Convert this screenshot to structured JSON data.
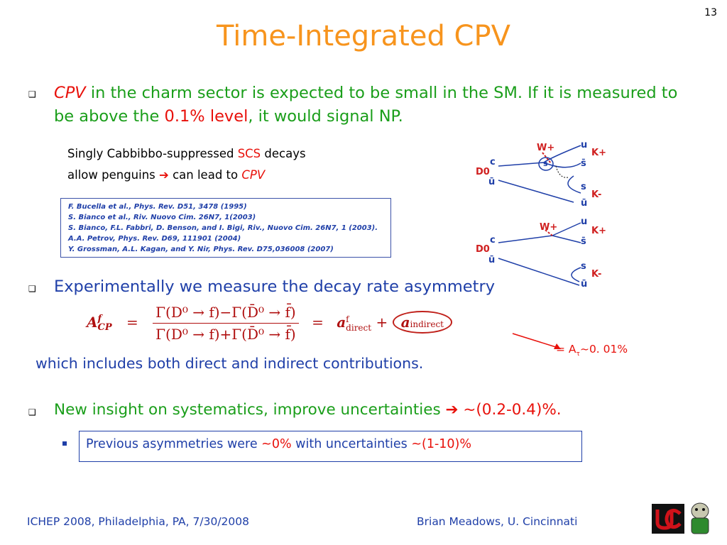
{
  "slide_number": "13",
  "title": "Time-Integrated CPV",
  "bullet1": {
    "cpv": "CPV",
    "text_a": " in the charm sector is expected to be small in the SM.  If it is measured to be above the ",
    "highlight": "0.1% level",
    "text_b": ", it would signal NP."
  },
  "scs": {
    "line1_a": "Singly Cabbibbo-suppressed  ",
    "line1_scs": "SCS",
    "line1_b": " decays",
    "line2_a": "allow penguins ",
    "arrow": "➔",
    "line2_b": " can lead to ",
    "line2_cpv": "CPV"
  },
  "references": [
    "F. Bucella et al., Phys. Rev. D51, 3478 (1995)",
    "S. Bianco et al., Riv. Nuovo Cim. 26N7, 1(2003)",
    "S. Bianco, F.L. Fabbri, D. Benson, and I. Bigi, Riv., Nuovo Cim. 26N7, 1 (2003).",
    "A.A. Petrov, Phys. Rev. D69, 111901 (2004)",
    "Y. Grossman, A.L. Kagan, and Y. Nir, Phys. Rev. D75,036008 (2007)"
  ],
  "bullet2": "Experimentally we measure the decay rate asymmetry",
  "formula": {
    "lhs": "A",
    "lhs_sup": "f",
    "lhs_sub": "CP",
    "eq": "=",
    "numerator": "Γ(D⁰ → f)−Γ(D̄⁰ → f̄)",
    "denominator": "Γ(D⁰ → f)+Γ(D̄⁰ → f̄)",
    "rhs_a": "a",
    "rhs_a_sup": "f",
    "rhs_a_sub": "direct",
    "plus": "+",
    "rhs_b": "a",
    "rhs_b_sub": "indirect"
  },
  "indirect_note": "= A",
  "indirect_note_sub": "τ",
  "indirect_note_b": "~0. 01%",
  "includes_text": "which includes both direct and indirect contributions.",
  "bullet3": {
    "text": "New insight on systematics, improve uncertainties ",
    "arrow": "➔",
    "range": " ~(0.2-0.4)%."
  },
  "prev": {
    "text_a": "Previous asymmetries were ",
    "val_a": "~0%",
    "text_b": " with uncertainties ",
    "val_b": "~(1-10)%"
  },
  "footer": {
    "left": "ICHEP 2008, Philadelphia, PA, 7/30/2008",
    "right": "Brian Meadows, U. Cincinnati"
  },
  "diagram1": {
    "w": "W+",
    "u": "u",
    "k_plus": "K+",
    "s": "s",
    "s_bar": "s̄",
    "c": "c",
    "d0": "D0",
    "s2": "s",
    "k_minus": "K-",
    "u_bar": "ū",
    "u_bar2": "ū"
  },
  "diagram2": {
    "w": "W+",
    "u": "u",
    "k_plus": "K+",
    "s_bar": "s̄",
    "c": "c",
    "d0": "D0",
    "u_bar": "ū",
    "s": "s",
    "k_minus": "K-",
    "u_bar2": "ū"
  }
}
